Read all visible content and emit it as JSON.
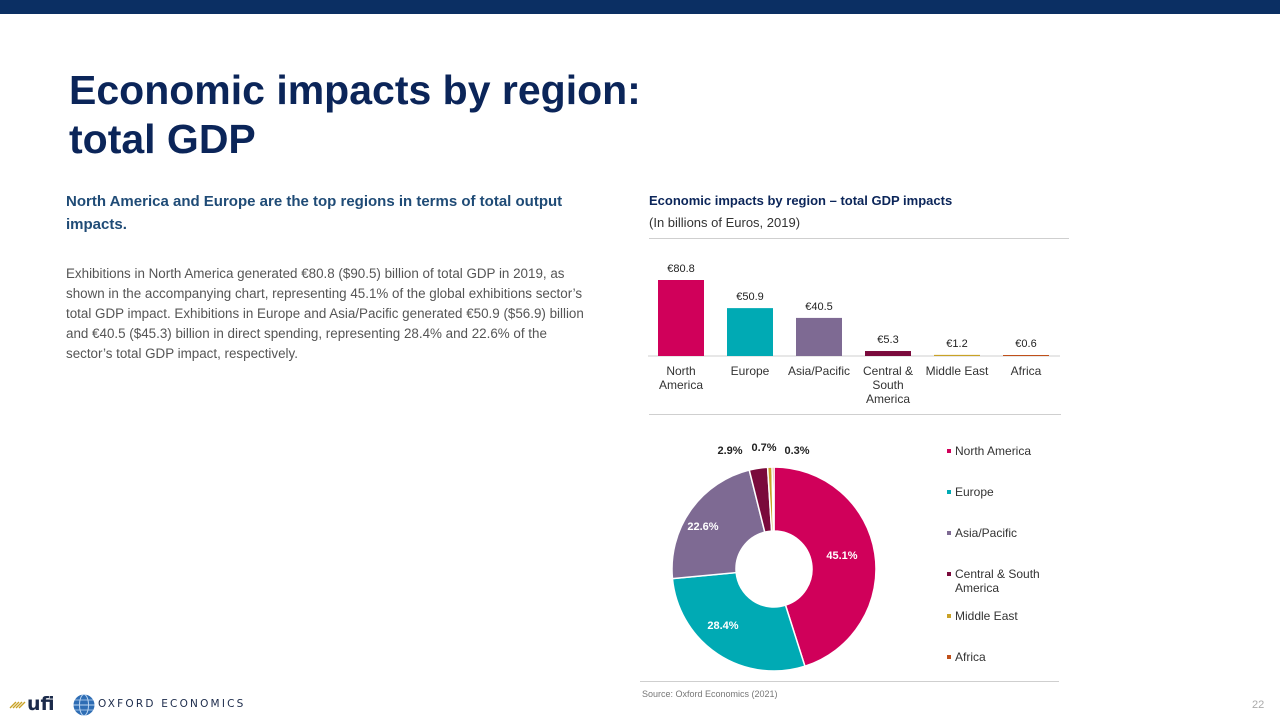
{
  "page": {
    "title_line1": "Economic impacts by region:",
    "title_line2": "total GDP",
    "subhead": "North America and Europe are the top regions in terms of total output impacts.",
    "body": "Exhibitions in North America generated €80.8 ($90.5) billion of total GDP in 2019, as shown in the accompanying chart, representing 45.1% of the global exhibitions sector’s total GDP impact. Exhibitions in Europe and Asia/Pacific generated €50.9 ($56.9) billion and €40.5 ($45.3) billion in direct spending, representing 28.4% and 22.6% of the sector’s total GDP impact, respectively.",
    "source": "Source: Oxford Economics (2021)",
    "page_number": "22"
  },
  "logos": {
    "ufi": "ufi",
    "oxford": "OXFORD ECONOMICS"
  },
  "chart_header": {
    "title": "Economic impacts by region – total GDP impacts",
    "subtitle": "(In billions of Euros, 2019)"
  },
  "colors": {
    "top_bar": "#0b2f63",
    "north_america": "#d0005a",
    "europe": "#00aab4",
    "asia_pacific": "#7e6a93",
    "central_south_america": "#7a0a3c",
    "middle_east": "#c9a227",
    "africa": "#c0501a"
  },
  "chart_data": [
    {
      "type": "bar",
      "categories": [
        "North America",
        "Europe",
        "Asia/Pacific",
        "Central & South America",
        "Middle East",
        "Africa"
      ],
      "category_lines": [
        [
          "North",
          "America"
        ],
        [
          "Europe"
        ],
        [
          "Asia/Pacific"
        ],
        [
          "Central &",
          "South",
          "America"
        ],
        [
          "Middle East"
        ],
        [
          "Africa"
        ]
      ],
      "values": [
        80.8,
        50.9,
        40.5,
        5.3,
        1.2,
        0.6
      ],
      "data_labels": [
        "€80.8",
        "€50.9",
        "€40.5",
        "€5.3",
        "€1.2",
        "€0.6"
      ],
      "colors": [
        "#d0005a",
        "#00aab4",
        "#7e6a93",
        "#7a0a3c",
        "#c9a227",
        "#c0501a"
      ],
      "ylim": [
        0,
        80.8
      ],
      "grid": false
    },
    {
      "type": "pie",
      "donut": true,
      "labels": [
        "North America",
        "Europe",
        "Asia/Pacific",
        "Central & South America",
        "Middle East",
        "Africa"
      ],
      "legend_lines": [
        [
          "North America"
        ],
        [
          "Europe"
        ],
        [
          "Asia/Pacific"
        ],
        [
          "Central & South",
          "America"
        ],
        [
          "Middle East"
        ],
        [
          "Africa"
        ]
      ],
      "values": [
        45.1,
        28.4,
        22.6,
        2.9,
        0.7,
        0.3
      ],
      "data_labels": [
        "45.1%",
        "28.4%",
        "22.6%",
        "2.9%",
        "0.7%",
        "0.3%"
      ],
      "colors": [
        "#d0005a",
        "#00aab4",
        "#7e6a93",
        "#7a0a3c",
        "#c9a227",
        "#c0501a"
      ],
      "legend_position": "right"
    }
  ]
}
